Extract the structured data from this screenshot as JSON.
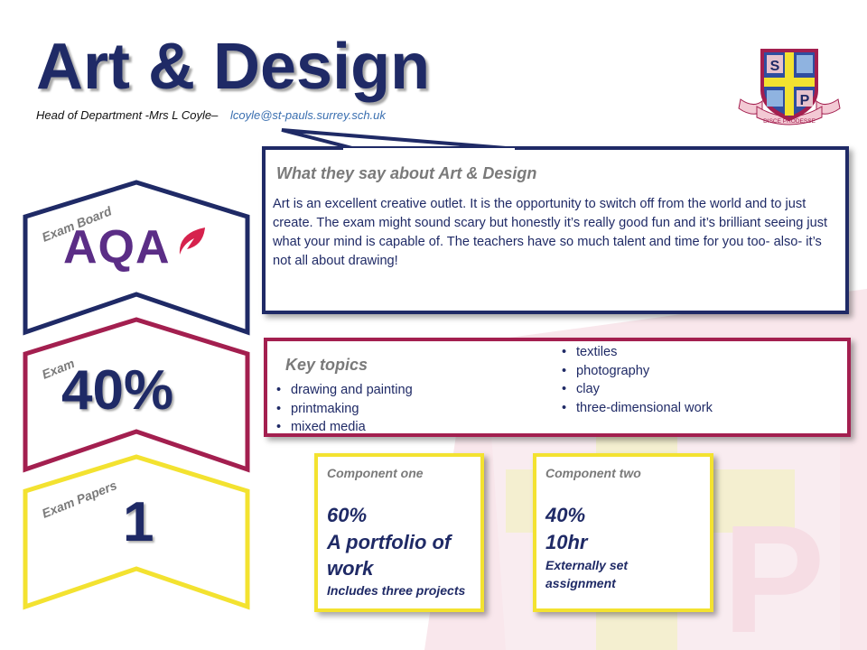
{
  "header": {
    "title": "Art & Design",
    "head_of_department": "Head of Department -Mrs L Coyle–",
    "email": "lcoyle@st-pauls.surrey.sch.uk"
  },
  "logo": {
    "letters": [
      "S",
      "P"
    ],
    "motto": "DISCE PRODESSE"
  },
  "stats": [
    {
      "label": "Exam Board",
      "value": "AQA",
      "color": "#1f2a66"
    },
    {
      "label": "Exam",
      "value": "40%",
      "color": "#a31f4f"
    },
    {
      "label": "Exam Papers",
      "value": "1",
      "color": "#f3e230"
    }
  ],
  "quote": {
    "title": "What they say about Art & Design",
    "text": "Art is an excellent creative outlet. It is the opportunity to switch off from the world and to just create. The exam might sound scary but honestly it’s really good fun and it’s brilliant seeing just what your mind is capable of. The teachers have so much talent and time for you too- also- it’s not all about drawing!"
  },
  "topics": {
    "title": "Key topics",
    "left": [
      "drawing and painting",
      "printmaking",
      "mixed media"
    ],
    "right": [
      "textiles",
      "photography",
      "clay",
      "three-dimensional work"
    ]
  },
  "components": [
    {
      "title": "Component one",
      "percent": "60%",
      "main": [
        "A portfolio of",
        "work"
      ],
      "sub": [
        "Includes three projects"
      ]
    },
    {
      "title": "Component two",
      "percent": "40%",
      "main": [
        "10hr"
      ],
      "sub": [
        "Externally set",
        "assignment"
      ]
    }
  ],
  "colors": {
    "navy": "#1f2a66",
    "crimson": "#a31f4f",
    "yellow": "#f3e230",
    "aqa_purple": "#5b2d86",
    "aqa_red": "#d6224d"
  }
}
